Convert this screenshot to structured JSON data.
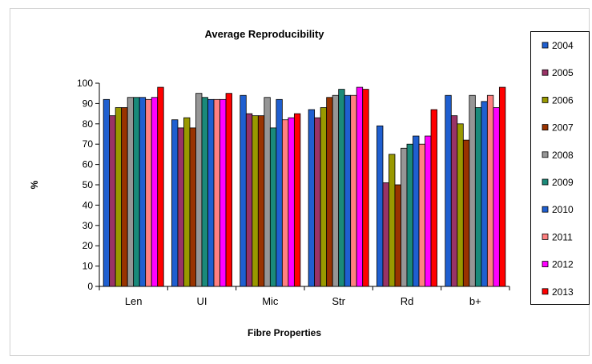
{
  "chart_data": {
    "type": "bar",
    "title": "Average Reproducibility",
    "xlabel": "Fibre Properties",
    "ylabel": "%",
    "ylim": [
      0,
      100
    ],
    "yticks": [
      0,
      10,
      20,
      30,
      40,
      50,
      60,
      70,
      80,
      90,
      100
    ],
    "grid": false,
    "legend_position": "right",
    "categories": [
      "Len",
      "UI",
      "Mic",
      "Str",
      "Rd",
      "b+"
    ],
    "series": [
      {
        "name": "2004",
        "color": "#1F5FD0",
        "values": [
          92,
          82,
          94,
          87,
          79,
          94
        ]
      },
      {
        "name": "2005",
        "color": "#993366",
        "values": [
          84,
          78,
          85,
          83,
          51,
          84
        ]
      },
      {
        "name": "2006",
        "color": "#999900",
        "values": [
          88,
          83,
          84,
          88,
          65,
          80
        ]
      },
      {
        "name": "2007",
        "color": "#993300",
        "values": [
          88,
          78,
          84,
          93,
          50,
          72
        ]
      },
      {
        "name": "2008",
        "color": "#969696",
        "values": [
          93,
          95,
          93,
          94,
          68,
          94
        ]
      },
      {
        "name": "2009",
        "color": "#1A8A7A",
        "values": [
          93,
          93,
          78,
          97,
          70,
          88
        ]
      },
      {
        "name": "2010",
        "color": "#1F5FD0",
        "values": [
          93,
          92,
          92,
          94,
          74,
          91
        ]
      },
      {
        "name": "2011",
        "color": "#FF8080",
        "values": [
          92,
          92,
          82,
          94,
          70,
          94
        ]
      },
      {
        "name": "2012",
        "color": "#FF00FF",
        "values": [
          93,
          92,
          83,
          98,
          74,
          88
        ]
      },
      {
        "name": "2013",
        "color": "#FF0000",
        "values": [
          98,
          95,
          85,
          97,
          87,
          98
        ]
      }
    ]
  }
}
